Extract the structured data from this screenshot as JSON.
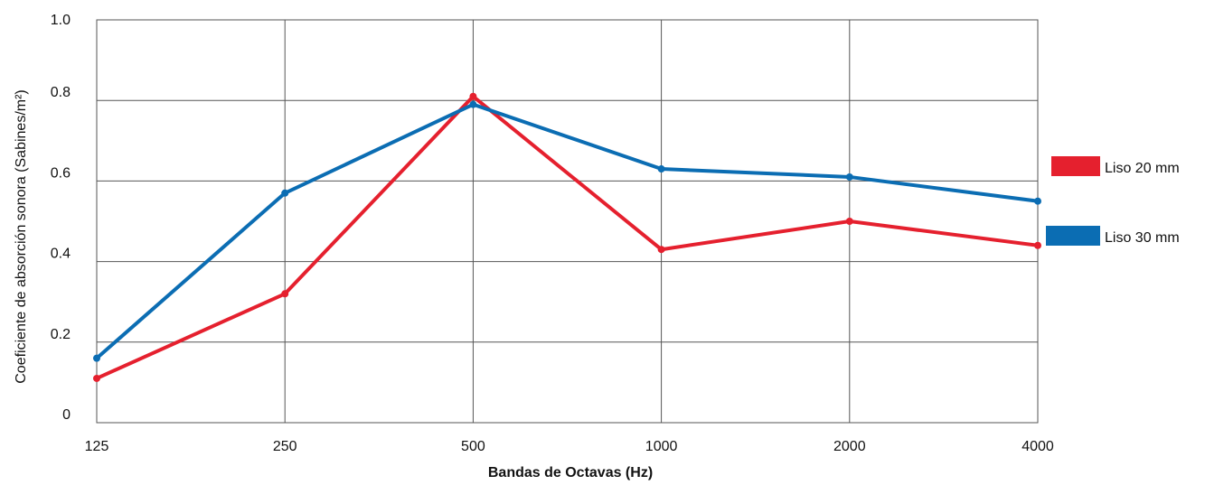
{
  "chart_data": {
    "type": "line",
    "categories": [
      "125",
      "250",
      "500",
      "1000",
      "2000",
      "4000"
    ],
    "series": [
      {
        "name": "Liso 20 mm",
        "values": [
          0.11,
          0.32,
          0.81,
          0.43,
          0.5,
          0.44
        ],
        "color": "#e5202e"
      },
      {
        "name": "Liso 30 mm",
        "values": [
          0.16,
          0.57,
          0.79,
          0.63,
          0.61,
          0.55
        ],
        "color": "#0b6db3"
      }
    ],
    "xlabel": "Bandas de Octavas (Hz)",
    "ylabel": "Coeficiente de absorción sonora (Sabines/m²)",
    "ylim": [
      0,
      1.0
    ],
    "yticks": [
      "0",
      "0.2",
      "0.4",
      "0.6",
      "0.8",
      "1.0"
    ],
    "grid": true,
    "legend_position": "right"
  }
}
